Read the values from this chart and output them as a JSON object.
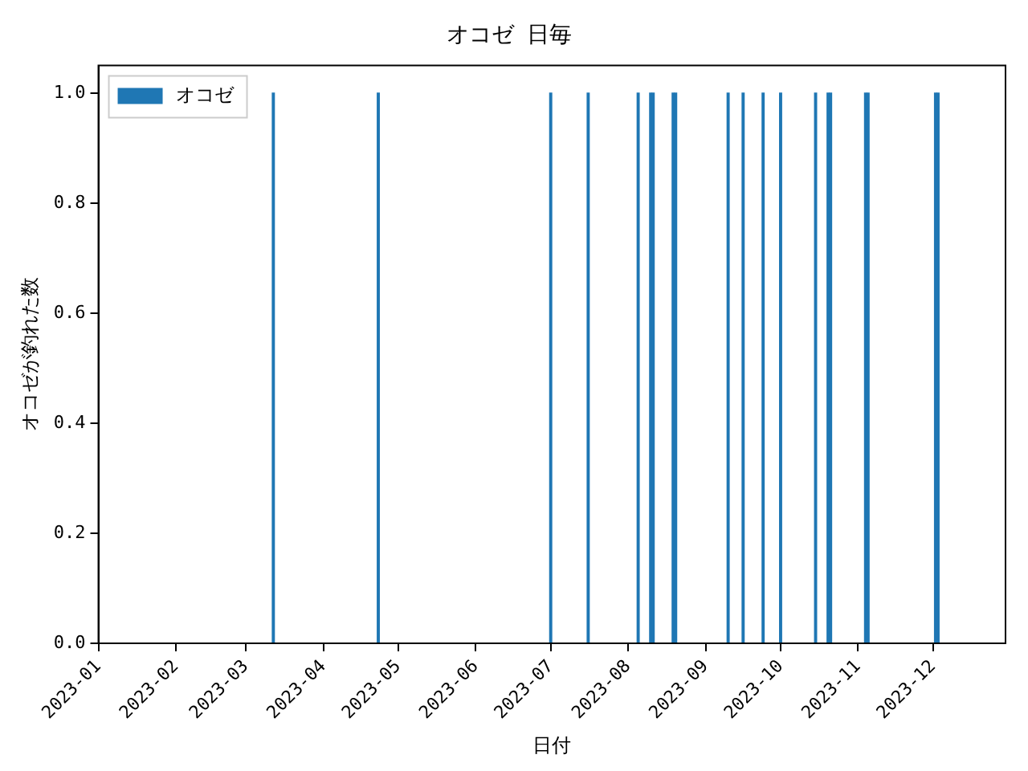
{
  "chart_data": {
    "type": "bar",
    "title": "オコゼ 日毎",
    "xlabel": "日付",
    "ylabel": "オコゼが釣れた数",
    "x": [
      "2023-03-12",
      "2023-04-23",
      "2023-07-01",
      "2023-07-16",
      "2023-08-05",
      "2023-08-10",
      "2023-08-11",
      "2023-08-19",
      "2023-08-20",
      "2023-09-10",
      "2023-09-16",
      "2023-09-24",
      "2023-10-01",
      "2023-10-15",
      "2023-10-20",
      "2023-10-21",
      "2023-11-04",
      "2023-11-05",
      "2023-12-02",
      "2023-12-03"
    ],
    "series": [
      {
        "name": "オコゼ",
        "color": "#1f77b4",
        "values": [
          1,
          1,
          1,
          1,
          1,
          1,
          1,
          1,
          1,
          1,
          1,
          1,
          1,
          1,
          1,
          1,
          1,
          1,
          1,
          1
        ]
      }
    ],
    "xlim": [
      "2023-01-01",
      "2023-12-30"
    ],
    "xticks": [
      "2023-01",
      "2023-02",
      "2023-03",
      "2023-04",
      "2023-05",
      "2023-06",
      "2023-07",
      "2023-08",
      "2023-09",
      "2023-10",
      "2023-11",
      "2023-12"
    ],
    "ylim": [
      0,
      1.05
    ],
    "yticks": [
      {
        "value": 0,
        "label": "0.0"
      },
      0.2,
      0.4,
      0.6,
      0.8,
      {
        "value": 1,
        "label": "1.0"
      }
    ],
    "grid": false,
    "legend": "top left"
  }
}
